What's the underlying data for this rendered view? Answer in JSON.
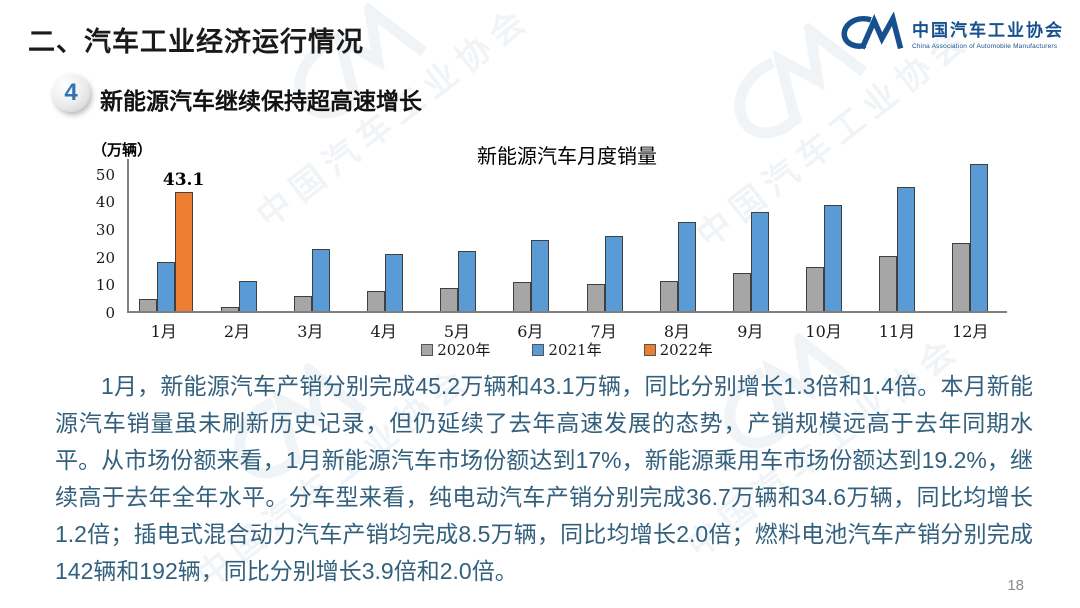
{
  "header": {
    "title": "二、汽车工业经济运行情况",
    "section_number": "4",
    "section_title": "新能源汽车继续保持超高速增长"
  },
  "logo": {
    "name_cn": "中国汽车工业协会",
    "name_en": "China Association of Automobile Manufacturers"
  },
  "watermark": {
    "text": "中国汽车工业协会"
  },
  "chart_data": {
    "type": "bar",
    "title": "新能源汽车月度销量",
    "unit_label": "（万辆）",
    "categories": [
      "1月",
      "2月",
      "3月",
      "4月",
      "5月",
      "6月",
      "7月",
      "8月",
      "9月",
      "10月",
      "11月",
      "12月"
    ],
    "series": [
      {
        "name": "2020年",
        "color": "#A6A6A6",
        "values": [
          4.4,
          1.3,
          5.3,
          7.2,
          8.2,
          10.4,
          9.8,
          10.9,
          13.8,
          16.0,
          20.0,
          24.8
        ]
      },
      {
        "name": "2021年",
        "color": "#5B9BD5",
        "values": [
          17.9,
          11.0,
          22.6,
          20.6,
          21.7,
          25.6,
          27.1,
          32.1,
          35.7,
          38.3,
          45.0,
          53.1
        ]
      },
      {
        "name": "2022年",
        "color": "#ED7D31",
        "values": [
          43.1,
          null,
          null,
          null,
          null,
          null,
          null,
          null,
          null,
          null,
          null,
          null
        ]
      }
    ],
    "ylim": [
      0,
      55
    ],
    "yticks": [
      0,
      10,
      20,
      30,
      40,
      50
    ],
    "legend_position": "bottom",
    "grid": false,
    "data_labels": [
      {
        "series": "2022年",
        "category": "1月",
        "text": "43.1"
      }
    ]
  },
  "body": {
    "paragraph": "1月，新能源汽车产销分别完成45.2万辆和43.1万辆，同比分别增长1.3倍和1.4倍。本月新能源汽车销量虽未刷新历史记录，但仍延续了去年高速发展的态势，产销规模远高于去年同期水平。从市场份额来看，1月新能源汽车市场份额达到17%，新能源乘用车市场份额达到19.2%，继续高于去年全年水平。分车型来看，纯电动汽车产销分别完成36.7万辆和34.6万辆，同比均增长1.2倍；插电式混合动力汽车产销均完成8.5万辆，同比均增长2.0倍；燃料电池汽车产销分别完成142辆和192辆，同比分别增长3.9倍和2.0倍。"
  },
  "footer": {
    "page_number": "18"
  },
  "colors": {
    "bar_2020": "#A6A6A6",
    "bar_2021": "#5B9BD5",
    "bar_2022": "#ED7D31",
    "body_text": "#33607D",
    "accent_blue": "#2E74B5",
    "logo_blue": "#17508F",
    "axis_gray": "#7f7f7f"
  }
}
